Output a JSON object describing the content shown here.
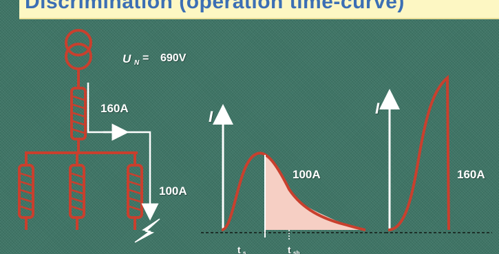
{
  "slide": {
    "title": "Discrimination (operation time-curve)",
    "background_color": "#3f7566",
    "title_bar_color": "#fdf7c3",
    "title_color": "#3c6fb4",
    "circuit_color": "#c8402e",
    "arrow_color": "#ffffff",
    "shaded_area_color": "#f6cfc4"
  },
  "circuit": {
    "voltage_symbol": "U",
    "voltage_subscript": "N",
    "voltage_equals": "=",
    "voltage_value": "690V",
    "upstream_fuse_rating": "160A",
    "downstream_fuse_rating": "100A",
    "downstream_feeder_count": 3,
    "fault_symbol": "lightning-bolt-icon"
  },
  "graph_100a": {
    "axis_label": "I",
    "curve_label": "100A",
    "time_labels": [
      {
        "symbol": "t",
        "subscript": "s"
      },
      {
        "symbol": "t",
        "subscript": "sb"
      }
    ]
  },
  "graph_160a": {
    "axis_label": "I",
    "curve_label": "160A"
  }
}
